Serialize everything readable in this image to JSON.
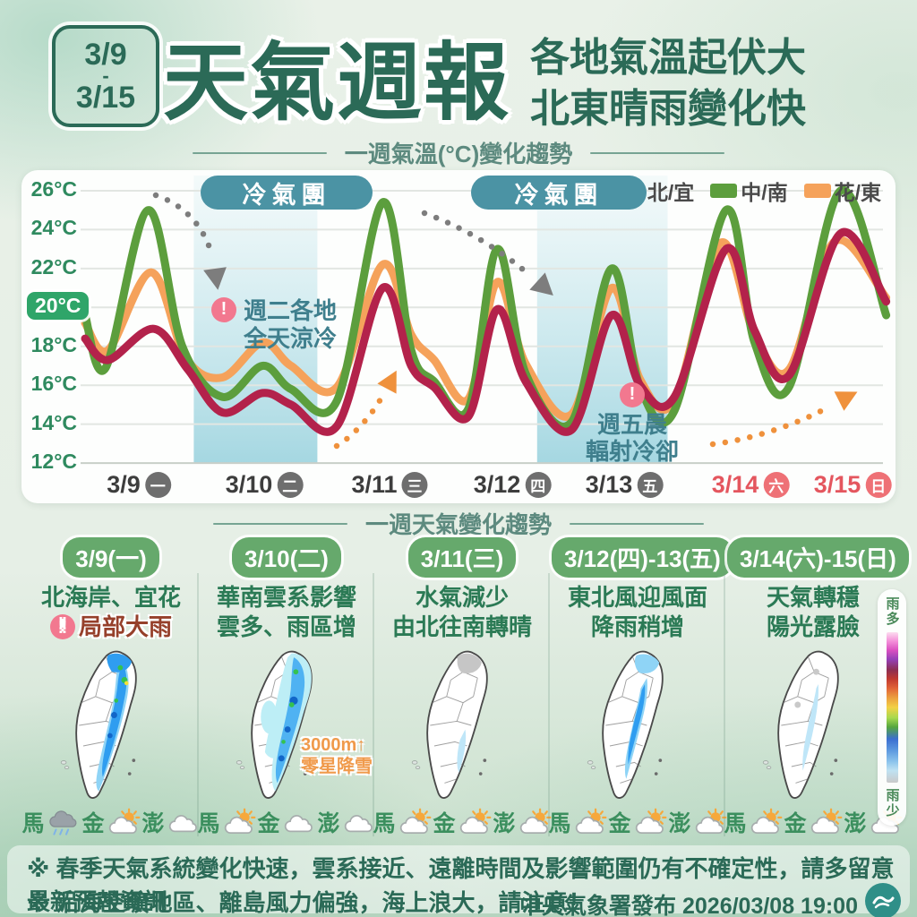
{
  "header": {
    "badge": {
      "line1": "3/9",
      "line2": "-",
      "line3": "3/15"
    },
    "title": "天氣週報",
    "subtitle_line1": "各地氣溫起伏大",
    "subtitle_line2": "北東晴雨變化快"
  },
  "chart": {
    "section_title": "一週氣溫(°C)變化趨勢",
    "legend": [
      {
        "label": "北/宜",
        "color": "#b3224b"
      },
      {
        "label": "中/南",
        "color": "#5c9e3d"
      },
      {
        "label": "花/東",
        "color": "#f5a25b"
      }
    ],
    "cold_badges": [
      "冷氣團",
      "冷氣團"
    ],
    "annotations": [
      {
        "line1": "週二各地",
        "line2": "全天涼冷"
      },
      {
        "line1": "週五晨",
        "line2": "輻射冷卻"
      }
    ],
    "y_ticks": [
      "26°C",
      "24°C",
      "22°C",
      "20°C",
      "18°C",
      "16°C",
      "14°C",
      "12°C"
    ],
    "x_labels": [
      {
        "date": "3/9",
        "dow": "一"
      },
      {
        "date": "3/10",
        "dow": "二"
      },
      {
        "date": "3/11",
        "dow": "三"
      },
      {
        "date": "3/12",
        "dow": "四"
      },
      {
        "date": "3/13",
        "dow": "五"
      },
      {
        "date": "3/14",
        "dow": "六"
      },
      {
        "date": "3/15",
        "dow": "日"
      }
    ]
  },
  "chart_data": {
    "type": "line",
    "title": "一週氣溫(°C)變化趨勢",
    "x_unit": "day (0 = 3/9 00:00, 7 = 3/15 24:00)",
    "x_tick_labels": [
      "3/9(一)",
      "3/10(二)",
      "3/11(三)",
      "3/12(四)",
      "3/13(五)",
      "3/14(六)",
      "3/15(日)"
    ],
    "ylabel": "°C",
    "ylim": [
      12,
      26
    ],
    "y_ticks_c": [
      12,
      14,
      16,
      18,
      20,
      22,
      24,
      26
    ],
    "grid": true,
    "legend_position": "top-right",
    "cold_air_bands_days": [
      [
        0.95,
        2.03
      ],
      [
        3.95,
        5.09
      ]
    ],
    "series": [
      {
        "name": "花/東",
        "color": "#f5a25b",
        "points": [
          [
            0,
            19.2
          ],
          [
            0.2,
            17.8
          ],
          [
            0.58,
            21.8
          ],
          [
            0.88,
            17.4
          ],
          [
            1.2,
            16.4
          ],
          [
            1.55,
            18.2
          ],
          [
            1.8,
            17.0
          ],
          [
            2.2,
            15.9
          ],
          [
            2.6,
            22.2
          ],
          [
            2.85,
            18.6
          ],
          [
            3.05,
            17.3
          ],
          [
            3.35,
            15.3
          ],
          [
            3.6,
            21.3
          ],
          [
            3.85,
            17.1
          ],
          [
            4.25,
            14.5
          ],
          [
            4.6,
            21.0
          ],
          [
            4.85,
            16.3
          ],
          [
            5.15,
            15.2
          ],
          [
            5.55,
            23.3
          ],
          [
            5.85,
            18.6
          ],
          [
            6.15,
            16.8
          ],
          [
            6.55,
            23.4
          ],
          [
            7,
            20.5
          ]
        ]
      },
      {
        "name": "中/南",
        "color": "#5c9e3d",
        "points": [
          [
            0,
            19.6
          ],
          [
            0.18,
            16.9
          ],
          [
            0.55,
            25.0
          ],
          [
            0.85,
            18.0
          ],
          [
            1.2,
            15.4
          ],
          [
            1.55,
            17.0
          ],
          [
            1.8,
            15.8
          ],
          [
            2.2,
            15.2
          ],
          [
            2.6,
            25.4
          ],
          [
            2.85,
            17.8
          ],
          [
            3.05,
            16.2
          ],
          [
            3.35,
            14.8
          ],
          [
            3.6,
            23.0
          ],
          [
            3.85,
            16.6
          ],
          [
            4.25,
            14.1
          ],
          [
            4.6,
            22.0
          ],
          [
            4.85,
            15.9
          ],
          [
            5.15,
            14.7
          ],
          [
            5.6,
            25.0
          ],
          [
            5.85,
            18.2
          ],
          [
            6.15,
            15.9
          ],
          [
            6.6,
            26.0
          ],
          [
            7,
            19.6
          ]
        ]
      },
      {
        "name": "北/宜",
        "color": "#b3224b",
        "points": [
          [
            0,
            18.4
          ],
          [
            0.2,
            17.3
          ],
          [
            0.6,
            18.9
          ],
          [
            0.9,
            16.8
          ],
          [
            1.2,
            14.6
          ],
          [
            1.55,
            15.6
          ],
          [
            1.8,
            15.0
          ],
          [
            2.2,
            13.9
          ],
          [
            2.6,
            21.0
          ],
          [
            2.85,
            17.0
          ],
          [
            3.05,
            15.9
          ],
          [
            3.35,
            14.4
          ],
          [
            3.6,
            19.9
          ],
          [
            3.85,
            16.2
          ],
          [
            4.25,
            13.7
          ],
          [
            4.6,
            19.6
          ],
          [
            4.85,
            16.0
          ],
          [
            5.15,
            15.4
          ],
          [
            5.6,
            23.0
          ],
          [
            5.85,
            18.8
          ],
          [
            6.15,
            16.5
          ],
          [
            6.6,
            23.8
          ],
          [
            7,
            20.3
          ]
        ]
      }
    ],
    "annotations": [
      "冷氣團 (3/9晚-3/10)",
      "冷氣團 (3/12晚-3/13)",
      "週二各地全天涼冷",
      "週五晨輻射冷卻"
    ]
  },
  "weekly": {
    "section_title": "一週天氣變化趨勢",
    "rain_scale": {
      "more": "雨多",
      "less": "雨少"
    },
    "panels": [
      {
        "badge": "3/9(一)",
        "line1": "北海岸、宜花",
        "alert_text": "局部大雨",
        "islands": [
          {
            "name": "馬",
            "icon": "rain-cloud"
          },
          {
            "name": "金",
            "icon": "sun-cloud"
          },
          {
            "name": "澎",
            "icon": "cloud"
          }
        ]
      },
      {
        "badge": "3/10(二)",
        "line1": "華南雲系影響",
        "line2": "雲多、雨區增",
        "note_line1": "3000m↑",
        "note_line2": "零星降雪",
        "islands": [
          {
            "name": "馬",
            "icon": "sun-cloud"
          },
          {
            "name": "金",
            "icon": "cloud"
          },
          {
            "name": "澎",
            "icon": "cloud"
          }
        ]
      },
      {
        "badge": "3/11(三)",
        "line1": "水氣減少",
        "line2": "由北往南轉晴",
        "islands": [
          {
            "name": "馬",
            "icon": "sun-cloud"
          },
          {
            "name": "金",
            "icon": "sun-cloud"
          },
          {
            "name": "澎",
            "icon": "sun-cloud"
          }
        ]
      },
      {
        "badge": "3/12(四)-13(五)",
        "line1": "東北風迎風面",
        "line2": "降雨稍增",
        "islands": [
          {
            "name": "馬",
            "icon": "sun-cloud"
          },
          {
            "name": "金",
            "icon": "sun-cloud"
          },
          {
            "name": "澎",
            "icon": "sun-cloud"
          }
        ]
      },
      {
        "badge": "3/14(六)-15(日)",
        "line1": "天氣轉穩",
        "line2": "陽光露臉",
        "islands": [
          {
            "name": "馬",
            "icon": "sun-cloud"
          },
          {
            "name": "金",
            "icon": "sun-cloud"
          },
          {
            "name": "澎",
            "icon": "sun-cloud"
          }
        ]
      }
    ]
  },
  "footer": {
    "note1": "※ 春季天氣系統變化快速，雲系接近、遠離時間及影響範圍仍有不確定性，請多留意最新預報資訊",
    "note2": "※ 沿海空曠地區、離島風力偏強，海上浪大，請注意！",
    "publisher": "中央氣象署發布 2026/03/08 19:00"
  }
}
